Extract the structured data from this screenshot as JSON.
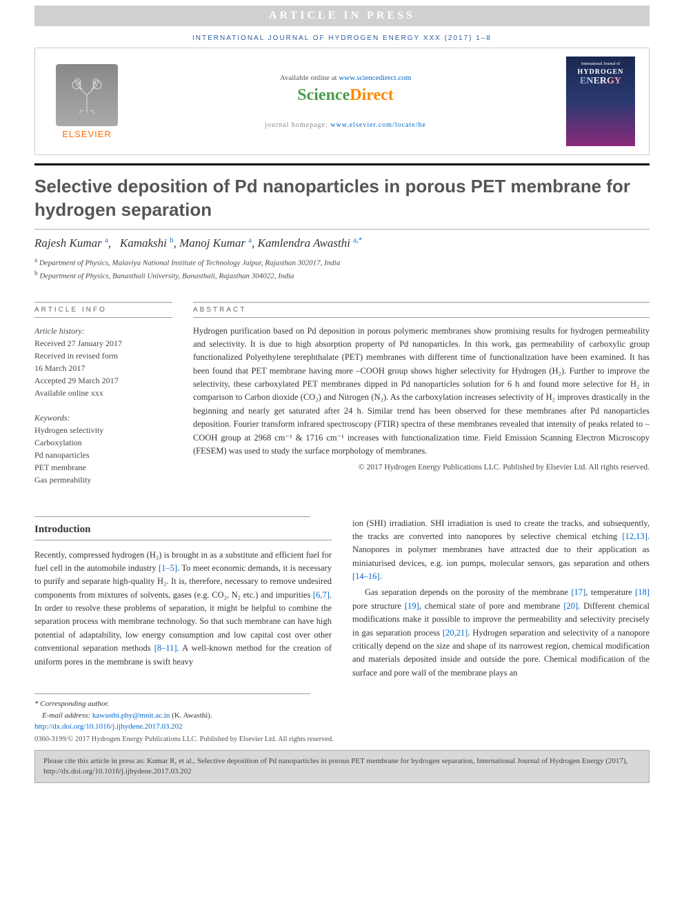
{
  "banner": "ARTICLE IN PRESS",
  "journal_ref": "INTERNATIONAL JOURNAL OF HYDROGEN ENERGY XXX (2017) 1–8",
  "header": {
    "elsevier": "ELSEVIER",
    "available": "Available online at ",
    "available_link": "www.sciencedirect.com",
    "sd_science": "Science",
    "sd_direct": "Direct",
    "homepage_label": "journal homepage: ",
    "homepage_link": "www.elsevier.com/locate/he",
    "cover_top": "International Journal of",
    "cover_h": "HYDROGEN",
    "cover_e": "ENERGY"
  },
  "title": "Selective deposition of Pd nanoparticles in porous PET membrane for hydrogen separation",
  "authors": [
    {
      "name": "Rajesh Kumar",
      "sup": "a"
    },
    {
      "name": "Kamakshi",
      "sup": "b"
    },
    {
      "name": "Manoj Kumar",
      "sup": "a"
    },
    {
      "name": "Kamlendra Awasthi",
      "sup": "a,*"
    }
  ],
  "affiliations": [
    {
      "sup": "a",
      "text": "Department of Physics, Malaviya National Institute of Technology Jaipur, Rajasthan 302017, India"
    },
    {
      "sup": "b",
      "text": "Department of Physics, Banasthali University, Banasthali, Rajasthan 304022, India"
    }
  ],
  "article_info": {
    "label": "ARTICLE INFO",
    "history_head": "Article history:",
    "history": [
      "Received 27 January 2017",
      "Received in revised form",
      "16 March 2017",
      "Accepted 29 March 2017",
      "Available online xxx"
    ],
    "keywords_head": "Keywords:",
    "keywords": [
      "Hydrogen selectivity",
      "Carboxylation",
      "Pd nanoparticles",
      "PET membrane",
      "Gas permeability"
    ]
  },
  "abstract": {
    "label": "ABSTRACT",
    "text": "Hydrogen purification based on Pd deposition in porous polymeric membranes show promising results for hydrogen permeability and selectivity. It is due to high absorption property of Pd nanoparticles. In this work, gas permeability of carboxylic group functionalized Polyethylene terephthalate (PET) membranes with different time of functionalization have been examined. It has been found that PET membrane having more –COOH group shows higher selectivity for Hydrogen (H₂). Further to improve the selectivity, these carboxylated PET membranes dipped in Pd nanoparticles solution for 6 h and found more selective for H₂ in comparison to Carbon dioxide (CO₂) and Nitrogen (N₂). As the carboxylation increases selectivity of H₂ improves drastically in the beginning and nearly get saturated after 24 h. Similar trend has been observed for these membranes after Pd nanoparticles deposition. Fourier transform infrared spectroscopy (FTIR) spectra of these membranes revealed that intensity of peaks related to –COOH group at 2968 cm⁻¹ & 1716 cm⁻¹ increases with functionalization time. Field Emission Scanning Electron Microscopy (FESEM) was used to study the surface morphology of membranes.",
    "copyright": "© 2017 Hydrogen Energy Publications LLC. Published by Elsevier Ltd. All rights reserved."
  },
  "intro": {
    "heading": "Introduction",
    "col1": "Recently, compressed hydrogen (H₂) is brought in as a substitute and efficient fuel for fuel cell in the automobile industry [1–5]. To meet economic demands, it is necessary to purify and separate high-quality H₂. It is, therefore, necessary to remove undesired components from mixtures of solvents, gases (e.g. CO₂, N₂ etc.) and impurities [6,7]. In order to resolve these problems of separation, it might be helpful to combine the separation process with membrane technology. So that such membrane can have high potential of adaptability, low energy consumption and low capital cost over other conventional separation methods [8–11]. A well-known method for the creation of uniform pores in the membrane is swift heavy",
    "col2a": "ion (SHI) irradiation. SHI irradiation is used to create the tracks, and subsequently, the tracks are converted into nanopores by selective chemical etching [12,13]. Nanopores in polymer membranes have attracted due to their application as miniaturised devices, e.g. ion pumps, molecular sensors, gas separation and others [14–16].",
    "col2b": "Gas separation depends on the porosity of the membrane [17], temperature [18] pore structure [19], chemical state of pore and membrane [20]. Different chemical modifications make it possible to improve the permeability and selectivity precisely in gas separation process [20,21]. Hydrogen separation and selectivity of a nanopore critically depend on the size and shape of its narrowest region, chemical modification and materials deposited inside and outside the pore. Chemical modification of the surface and pore wall of the membrane plays an"
  },
  "footer": {
    "corr": "* Corresponding author.",
    "email_label": "E-mail address: ",
    "email": "kawasthi.phy@mnit.ac.in",
    "email_name": " (K. Awasthi).",
    "doi": "http://dx.doi.org/10.1016/j.ijhydene.2017.03.202",
    "issn": "0360-3199/© 2017 Hydrogen Energy Publications LLC. Published by Elsevier Ltd. All rights reserved.",
    "cite": "Please cite this article in press as: Kumar R, et al., Selective deposition of Pd nanoparticles in porous PET membrane for hydrogen separation, International Journal of Hydrogen Energy (2017), http://dx.doi.org/10.1016/j.ijhydene.2017.03.202"
  },
  "colors": {
    "link": "#0066cc",
    "elsevier_orange": "#ff6c00",
    "sd_green": "#4a9d4a",
    "sd_orange": "#ff8800",
    "banner_bg": "#d0d0d0",
    "citebox_bg": "#d8d8d8"
  }
}
